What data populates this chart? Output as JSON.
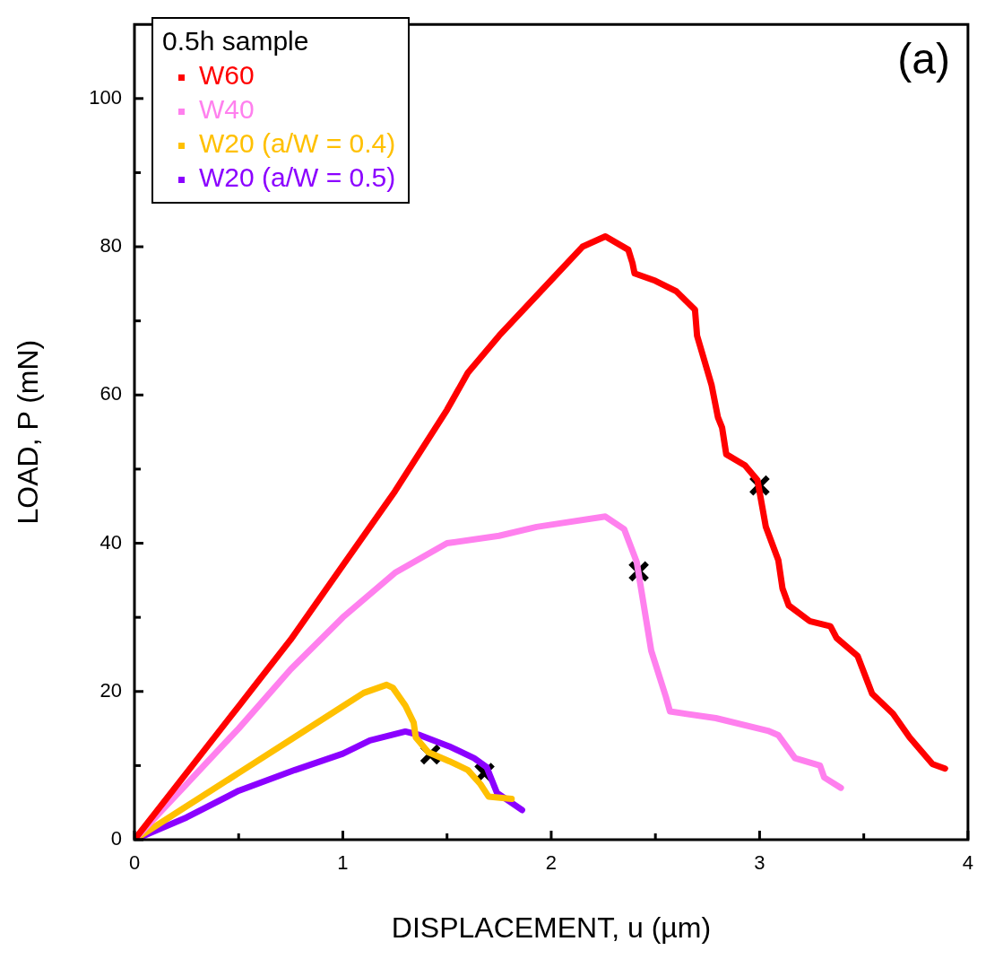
{
  "chart_data": {
    "type": "line",
    "xlabel": "DISPLACEMENT, u (µm)",
    "ylabel": "LOAD, P (mN)",
    "legend_title": "0.5h sample",
    "legend": "top left",
    "grid": false,
    "marker": "none",
    "line_style": "solid",
    "xlim": [
      0,
      4
    ],
    "xticks": [
      0,
      {
        "value": 0.5,
        "label": null
      },
      1,
      {
        "value": 1.5,
        "label": null
      },
      2,
      {
        "value": 2.5,
        "label": null
      },
      3,
      {
        "value": 3.5,
        "label": null
      },
      4
    ],
    "ylim": [
      0,
      110
    ],
    "yticks": [
      0,
      {
        "value": 10,
        "label": null
      },
      20,
      {
        "value": 30,
        "label": null
      },
      40,
      {
        "value": 50,
        "label": null
      },
      60,
      {
        "value": 70,
        "label": null
      },
      80,
      {
        "value": 90,
        "label": null
      },
      100
    ],
    "annotations": [
      "(a)"
    ],
    "series": [
      {
        "name": "W60",
        "color": "#ff0000",
        "x": [
          0,
          0.25,
          0.5,
          0.75,
          1,
          1.25,
          1.5,
          1.6,
          1.75,
          2,
          2.15,
          2.26,
          2.37,
          2.39,
          2.4,
          2.5,
          2.6,
          2.69,
          2.7,
          2.77,
          2.8,
          2.82,
          2.84,
          2.93,
          2.99,
          3.03,
          3.09,
          3.11,
          3.14,
          3.24,
          3.34,
          3.37,
          3.47,
          3.54,
          3.64,
          3.72,
          3.83,
          3.89
        ],
        "values": [
          0,
          9,
          18,
          27,
          37,
          47,
          58,
          63,
          68,
          75.5,
          80,
          81.4,
          79.6,
          77.8,
          76.4,
          75.4,
          74,
          71.5,
          68,
          61.3,
          57,
          55.6,
          52,
          50.5,
          48.5,
          42.2,
          37.7,
          33.9,
          31.6,
          29.5,
          28.8,
          27.2,
          24.8,
          19.7,
          17,
          13.8,
          10.2,
          9.6
        ]
      },
      {
        "name": "W40",
        "color": "#ff80ee",
        "x": [
          0,
          0.25,
          0.5,
          0.75,
          1,
          1.25,
          1.5,
          1.75,
          1.93,
          2,
          2.26,
          2.35,
          2.41,
          2.48,
          2.55,
          2.57,
          2.79,
          3.04,
          3.09,
          3.17,
          3.29,
          3.31,
          3.39
        ],
        "values": [
          0,
          7.5,
          15,
          23,
          30,
          36,
          40,
          41,
          42.2,
          42.5,
          43.6,
          41.9,
          37.5,
          25.5,
          19.3,
          17.3,
          16.4,
          14.7,
          14.1,
          11,
          10,
          8.4,
          7
        ]
      },
      {
        "name": "W20 (a/W = 0.4)",
        "color": "#ffc000",
        "x": [
          0,
          0.25,
          0.5,
          0.75,
          1,
          1.1,
          1.21,
          1.24,
          1.3,
          1.34,
          1.35,
          1.41,
          1.51,
          1.6,
          1.66,
          1.7,
          1.81
        ],
        "values": [
          0,
          4.5,
          9,
          13.5,
          18,
          19.8,
          20.9,
          20.5,
          18.1,
          15.8,
          13.8,
          11.8,
          10.6,
          9.4,
          7.5,
          5.8,
          5.5
        ]
      },
      {
        "name": "W20 (a/W = 0.5)",
        "color": "#8b00ff",
        "x": [
          0,
          0.25,
          0.5,
          0.77,
          1,
          1.13,
          1.3,
          1.37,
          1.51,
          1.63,
          1.69,
          1.74,
          1.86
        ],
        "values": [
          0,
          3,
          6.6,
          9.4,
          11.6,
          13.4,
          14.6,
          14.1,
          12.6,
          11,
          9.8,
          6.3,
          4
        ]
      },
      {
        "type": "scatter",
        "marker": "cross",
        "color": "#000000",
        "x": [
          1.42,
          1.68,
          2.42,
          3.0
        ],
        "values": [
          11.5,
          9,
          36.2,
          47.8
        ]
      }
    ]
  }
}
